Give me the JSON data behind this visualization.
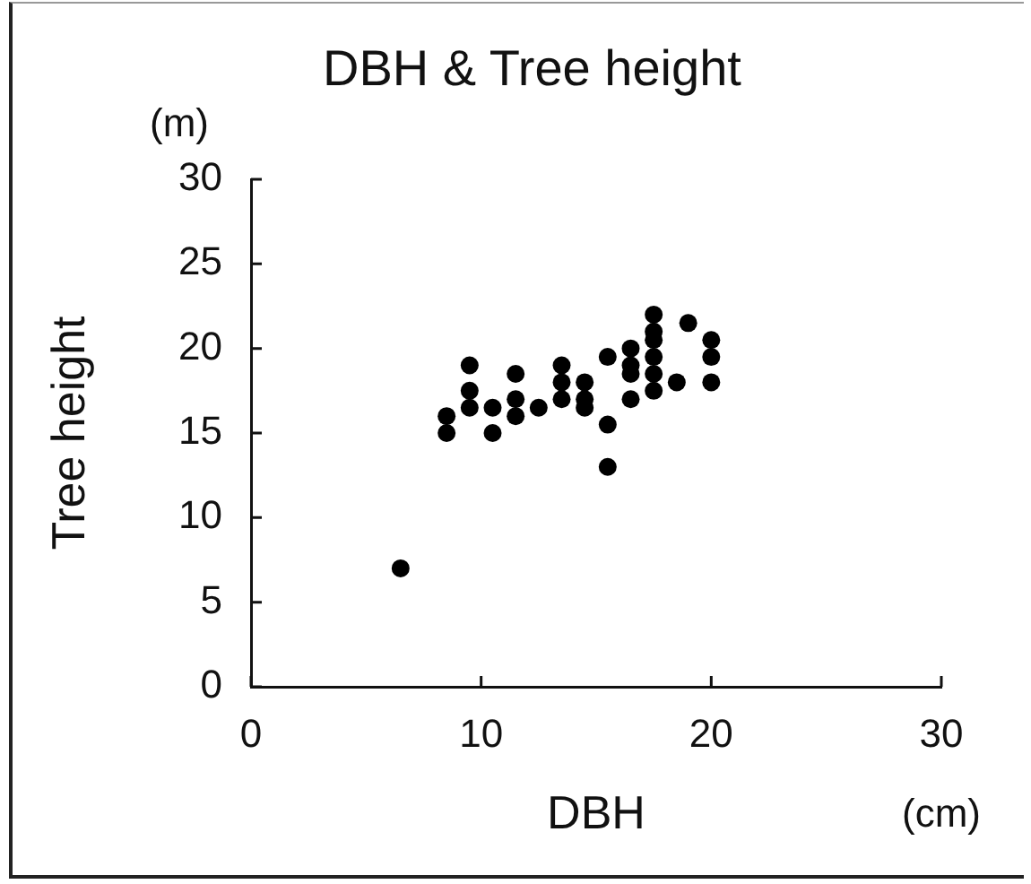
{
  "chart_data": {
    "type": "scatter",
    "title": "DBH & Tree height",
    "xlabel": "DBH",
    "ylabel": "Tree height",
    "annotations": [
      "(cm)",
      "(m)"
    ],
    "xlim": [
      0,
      30
    ],
    "xticks": [
      0,
      10,
      20,
      30
    ],
    "ylim": [
      0,
      30
    ],
    "yticks": [
      0,
      5,
      10,
      15,
      20,
      25,
      30
    ],
    "grid": false,
    "legend": false,
    "marker": "circle",
    "series": [
      {
        "color": "#000000",
        "x": [
          20,
          20,
          20,
          19,
          18.5,
          17.5,
          17.5,
          17.5,
          17.5,
          17.5,
          17.5,
          16.5,
          16.5,
          16.5,
          16.5,
          15.5,
          15.5,
          15.5,
          14.5,
          14.5,
          14.5,
          13.5,
          13.5,
          13.5,
          12.5,
          11.5,
          11.5,
          11.5,
          10.5,
          10.5,
          9.5,
          9.5,
          9.5,
          8.5,
          8.5,
          6.5
        ],
        "values": [
          20.5,
          19.5,
          18,
          21.5,
          18,
          22,
          21,
          20.5,
          19.5,
          18.5,
          17.5,
          20,
          19,
          18.5,
          17,
          19.5,
          15.5,
          13,
          18,
          17,
          16.5,
          19,
          18,
          17,
          16.5,
          18.5,
          17,
          16,
          15,
          16.5,
          19,
          17.5,
          16.5,
          16,
          15,
          7
        ]
      }
    ]
  }
}
